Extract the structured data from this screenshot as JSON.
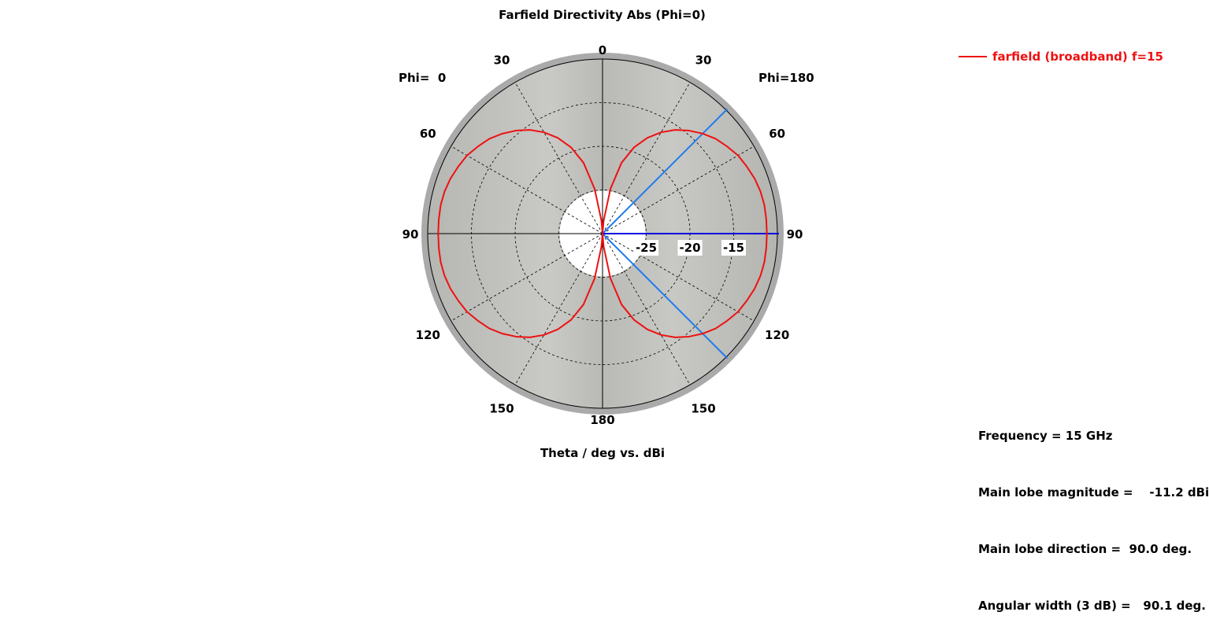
{
  "chart_data": {
    "type": "polar-line",
    "title": "Farfield Directivity Abs (Phi=0)",
    "xlabel": "Theta / deg vs. dBi",
    "left_half_label": "Phi=  0",
    "right_half_label": "Phi=180",
    "r_range": [
      -30,
      -10
    ],
    "radial_ticks": [
      -25,
      -20,
      -15
    ],
    "angle_labels": {
      "right": [
        "0",
        "30",
        "60",
        "90",
        "120",
        "150",
        "180"
      ],
      "left": [
        "30",
        "60",
        "90",
        "120",
        "150"
      ]
    },
    "grid": true,
    "series": [
      {
        "name": "farfield (broadband) f=15",
        "color": "#ee1111",
        "theta": [
          0,
          5,
          10,
          15,
          20,
          25,
          30,
          35,
          40,
          45,
          50,
          55,
          60,
          65,
          70,
          75,
          80,
          85,
          90,
          95,
          100,
          105,
          110,
          115,
          120,
          125,
          130,
          135,
          140,
          145,
          150,
          155,
          160,
          165,
          170,
          175,
          180
        ],
        "dbi": [
          -30,
          -28.5,
          -24.8,
          -21.6,
          -19.5,
          -17.9,
          -16.6,
          -15.5,
          -14.6,
          -13.8,
          -13.1,
          -12.6,
          -12.1,
          -11.8,
          -11.5,
          -11.3,
          -11.2,
          -11.2,
          -11.2,
          -11.2,
          -11.2,
          -11.3,
          -11.5,
          -11.8,
          -12.1,
          -12.6,
          -13.1,
          -13.8,
          -14.6,
          -15.5,
          -16.6,
          -17.9,
          -19.5,
          -21.6,
          -24.8,
          -28.5,
          -30
        ]
      }
    ],
    "markers": {
      "main_lobe_direction_deg": 90.0,
      "beamwidth_edges_deg": [
        45.0,
        135.0
      ]
    },
    "legend": {
      "position": "top-right"
    }
  },
  "info": {
    "frequency": "Frequency = 15 GHz",
    "main_lobe_magnitude": "Main lobe magnitude =    -11.2 dBi",
    "main_lobe_direction": "Main lobe direction =  90.0 deg.",
    "angular_width": "Angular width (3 dB) =   90.1 deg."
  },
  "colors": {
    "trace": "#ee1111",
    "main_lobe_line": "#0000dd",
    "beamwidth_lines": "#1e7cf0",
    "disc_fill": "#c0c0bc",
    "disc_rim": "#aaaaaa"
  }
}
